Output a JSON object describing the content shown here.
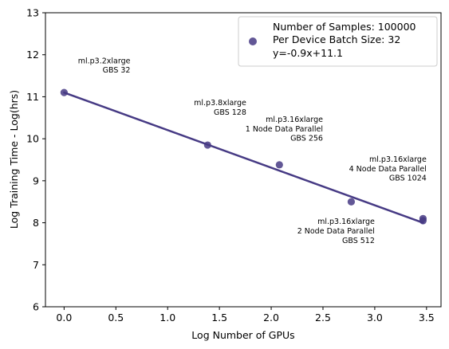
{
  "chart_data": {
    "type": "scatter",
    "xlabel": "Log Number of GPUs",
    "ylabel": "Log Training Time - Log(hrs)",
    "xlim": [
      -0.18,
      3.64
    ],
    "ylim": [
      6,
      13
    ],
    "x_ticks": [
      "0.0",
      "0.5",
      "1.0",
      "1.5",
      "2.0",
      "2.5",
      "3.0",
      "3.5"
    ],
    "x_tick_values": [
      0,
      0.5,
      1,
      1.5,
      2,
      2.5,
      3,
      3.5
    ],
    "y_ticks": [
      "6",
      "7",
      "8",
      "9",
      "10",
      "11",
      "12",
      "13"
    ],
    "y_tick_values": [
      6,
      7,
      8,
      9,
      10,
      11,
      12,
      13
    ],
    "grid": false,
    "color": "#463a84",
    "points": [
      {
        "x": 0.0,
        "y": 11.1
      },
      {
        "x": 1.386,
        "y": 9.85
      },
      {
        "x": 2.079,
        "y": 9.38
      },
      {
        "x": 2.773,
        "y": 8.5
      },
      {
        "x": 3.466,
        "y": 8.1
      },
      {
        "x": 3.466,
        "y": 8.05
      }
    ],
    "fit_line": {
      "x": [
        0.0,
        3.466
      ],
      "y": [
        11.1,
        8.0
      ]
    },
    "legend": {
      "placement": "top-right",
      "lines": [
        "Number of Samples: 100000",
        "Per Device Batch Size: 32",
        "y=-0.9x+11.1"
      ]
    },
    "annotations": [
      {
        "lines": [
          "ml.p3.2xlarge",
          "GBS 32"
        ],
        "x": 0.64,
        "y": 11.8
      },
      {
        "lines": [
          "ml.p3.8xlarge",
          "GBS 128"
        ],
        "x": 1.76,
        "y": 10.8
      },
      {
        "lines": [
          "ml.p3.16xlarge",
          "1 Node Data Parallel",
          "GBS 256"
        ],
        "x": 2.5,
        "y": 10.4
      },
      {
        "lines": [
          "ml.p3.16xlarge",
          "4 Node Data Parallel",
          "GBS 1024"
        ],
        "x": 3.5,
        "y": 9.45
      },
      {
        "lines": [
          "ml.p3.16xlarge",
          "2 Node Data Parallel",
          "GBS 512"
        ],
        "x": 3.0,
        "y": 7.97
      }
    ]
  }
}
